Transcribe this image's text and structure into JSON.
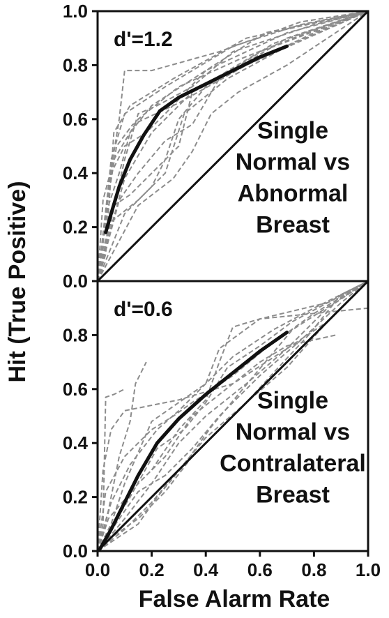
{
  "figure": {
    "ylabel": "Hit (True Positive)",
    "xlabel": "False Alarm Rate"
  },
  "chart_data": [
    {
      "type": "line",
      "panel": "top",
      "dprime": "d'=1.2",
      "annotation": [
        "Single",
        "Normal vs",
        "Abnormal",
        "Breast"
      ],
      "xlim": [
        0,
        1
      ],
      "ylim": [
        0,
        1
      ],
      "x_ticks": [
        "0.0",
        "0.2",
        "0.4",
        "0.6",
        "0.8",
        "1.0"
      ],
      "y_ticks": [
        "0.0",
        "0.2",
        "0.4",
        "0.6",
        "0.8",
        "1.0"
      ],
      "x_ticks_shown": false,
      "colors": {
        "observer": "#8c8c8c",
        "model": "#111111",
        "chance": "#111111"
      },
      "chance_line": [
        [
          0,
          0
        ],
        [
          1,
          1
        ]
      ],
      "model_curve": [
        [
          0.03,
          0.18
        ],
        [
          0.05,
          0.25
        ],
        [
          0.08,
          0.35
        ],
        [
          0.12,
          0.45
        ],
        [
          0.17,
          0.54
        ],
        [
          0.23,
          0.63
        ],
        [
          0.3,
          0.68
        ],
        [
          0.4,
          0.73
        ],
        [
          0.5,
          0.78
        ],
        [
          0.6,
          0.83
        ],
        [
          0.7,
          0.87
        ]
      ],
      "observer_curves": [
        [
          [
            0,
            0
          ],
          [
            0.02,
            0.15
          ],
          [
            0.05,
            0.45
          ],
          [
            0.1,
            0.62
          ],
          [
            0.25,
            0.72
          ],
          [
            0.5,
            0.87
          ],
          [
            0.75,
            0.95
          ],
          [
            1,
            1
          ]
        ],
        [
          [
            0,
            0
          ],
          [
            0.03,
            0.1
          ],
          [
            0.06,
            0.55
          ],
          [
            0.12,
            0.65
          ],
          [
            0.28,
            0.75
          ],
          [
            0.55,
            0.9
          ],
          [
            1,
            1
          ]
        ],
        [
          [
            0,
            0
          ],
          [
            0.04,
            0.28
          ],
          [
            0.08,
            0.4
          ],
          [
            0.12,
            0.55
          ],
          [
            0.2,
            0.65
          ],
          [
            0.4,
            0.78
          ],
          [
            0.7,
            0.92
          ],
          [
            1,
            1
          ]
        ],
        [
          [
            0,
            0
          ],
          [
            0.02,
            0.3
          ],
          [
            0.06,
            0.45
          ],
          [
            0.15,
            0.6
          ],
          [
            0.3,
            0.72
          ],
          [
            0.52,
            0.82
          ],
          [
            0.8,
            0.93
          ],
          [
            1,
            1
          ]
        ],
        [
          [
            0,
            0
          ],
          [
            0.05,
            0.2
          ],
          [
            0.1,
            0.38
          ],
          [
            0.2,
            0.55
          ],
          [
            0.35,
            0.7
          ],
          [
            0.6,
            0.85
          ],
          [
            1,
            1
          ]
        ],
        [
          [
            0,
            0
          ],
          [
            0.04,
            0.35
          ],
          [
            0.08,
            0.6
          ],
          [
            0.1,
            0.78
          ],
          [
            0.2,
            0.78
          ],
          [
            0.45,
            0.85
          ],
          [
            0.75,
            0.96
          ],
          [
            1,
            1
          ]
        ],
        [
          [
            0,
            0
          ],
          [
            0.03,
            0.25
          ],
          [
            0.07,
            0.5
          ],
          [
            0.13,
            0.58
          ],
          [
            0.3,
            0.66
          ],
          [
            0.55,
            0.8
          ],
          [
            0.8,
            0.92
          ],
          [
            1,
            1
          ]
        ],
        [
          [
            0,
            0
          ],
          [
            0.1,
            0.25
          ],
          [
            0.2,
            0.35
          ],
          [
            0.25,
            0.45
          ],
          [
            0.3,
            0.6
          ],
          [
            0.4,
            0.72
          ],
          [
            0.65,
            0.88
          ],
          [
            1,
            1
          ]
        ],
        [
          [
            0,
            0
          ],
          [
            0.08,
            0.3
          ],
          [
            0.15,
            0.4
          ],
          [
            0.25,
            0.52
          ],
          [
            0.35,
            0.58
          ],
          [
            0.45,
            0.75
          ],
          [
            0.7,
            0.9
          ],
          [
            1,
            1
          ]
        ],
        [
          [
            0,
            0
          ],
          [
            0.05,
            0.4
          ],
          [
            0.1,
            0.5
          ],
          [
            0.18,
            0.55
          ],
          [
            0.25,
            0.62
          ],
          [
            0.4,
            0.78
          ],
          [
            0.62,
            0.92
          ],
          [
            1,
            1
          ]
        ],
        [
          [
            0,
            0
          ],
          [
            0.06,
            0.28
          ],
          [
            0.12,
            0.32
          ],
          [
            0.22,
            0.42
          ],
          [
            0.3,
            0.5
          ],
          [
            0.35,
            0.7
          ],
          [
            0.55,
            0.8
          ],
          [
            1,
            1
          ]
        ],
        [
          [
            0,
            0
          ],
          [
            0.02,
            0.12
          ],
          [
            0.05,
            0.22
          ],
          [
            0.15,
            0.3
          ],
          [
            0.25,
            0.4
          ],
          [
            0.32,
            0.62
          ],
          [
            0.48,
            0.75
          ],
          [
            0.72,
            0.88
          ],
          [
            1,
            1
          ]
        ],
        [
          [
            0,
            0
          ],
          [
            0.15,
            0.28
          ],
          [
            0.28,
            0.38
          ],
          [
            0.35,
            0.48
          ],
          [
            0.42,
            0.62
          ],
          [
            0.52,
            0.7
          ],
          [
            0.7,
            0.8
          ],
          [
            1,
            1
          ]
        ],
        [
          [
            0,
            0
          ],
          [
            0.1,
            0.45
          ],
          [
            0.15,
            0.62
          ],
          [
            0.22,
            0.65
          ],
          [
            0.35,
            0.72
          ],
          [
            0.5,
            0.85
          ],
          [
            0.8,
            0.95
          ],
          [
            1,
            1
          ]
        ]
      ]
    },
    {
      "type": "line",
      "panel": "bottom",
      "dprime": "d'=0.6",
      "annotation": [
        "Single",
        "Normal vs",
        "Contralateral",
        "Breast"
      ],
      "xlim": [
        0,
        1
      ],
      "ylim": [
        0,
        1
      ],
      "x_ticks": [
        "0.0",
        "0.2",
        "0.4",
        "0.6",
        "0.8",
        "1.0"
      ],
      "y_ticks": [
        "0.0",
        "0.2",
        "0.4",
        "0.6",
        "0.8",
        "1.0"
      ],
      "x_ticks_shown": true,
      "colors": {
        "observer": "#8c8c8c",
        "model": "#111111",
        "chance": "#111111"
      },
      "chance_line": [
        [
          0,
          0
        ],
        [
          1,
          1
        ]
      ],
      "model_curve": [
        [
          0.01,
          0.01
        ],
        [
          0.05,
          0.08
        ],
        [
          0.1,
          0.18
        ],
        [
          0.15,
          0.28
        ],
        [
          0.22,
          0.4
        ],
        [
          0.3,
          0.49
        ],
        [
          0.4,
          0.58
        ],
        [
          0.5,
          0.66
        ],
        [
          0.6,
          0.74
        ],
        [
          0.7,
          0.81
        ]
      ],
      "observer_curves": [
        [
          [
            0,
            0
          ],
          [
            0.02,
            0.1
          ],
          [
            0.03,
            0.57
          ],
          [
            0.06,
            0.58
          ],
          [
            0.1,
            0.6
          ]
        ],
        [
          [
            0,
            0
          ],
          [
            0.04,
            0.15
          ],
          [
            0.08,
            0.35
          ],
          [
            0.12,
            0.48
          ],
          [
            0.14,
            0.62
          ],
          [
            0.17,
            0.68
          ],
          [
            0.18,
            0.7
          ]
        ],
        [
          [
            0,
            0
          ],
          [
            0.05,
            0.1
          ],
          [
            0.1,
            0.25
          ],
          [
            0.2,
            0.48
          ],
          [
            0.3,
            0.55
          ],
          [
            0.4,
            0.62
          ],
          [
            0.45,
            0.75
          ],
          [
            0.6,
            0.86
          ],
          [
            0.85,
            0.92
          ],
          [
            1,
            1
          ]
        ],
        [
          [
            0,
            0
          ],
          [
            0.04,
            0.12
          ],
          [
            0.15,
            0.25
          ],
          [
            0.25,
            0.35
          ],
          [
            0.35,
            0.5
          ],
          [
            0.5,
            0.62
          ],
          [
            0.6,
            0.7
          ],
          [
            0.7,
            0.76
          ],
          [
            0.88,
            0.8
          ]
        ],
        [
          [
            0,
            0
          ],
          [
            0.1,
            0.12
          ],
          [
            0.2,
            0.25
          ],
          [
            0.3,
            0.4
          ],
          [
            0.4,
            0.5
          ],
          [
            0.55,
            0.62
          ],
          [
            0.7,
            0.75
          ],
          [
            0.85,
            0.9
          ],
          [
            1,
            1
          ]
        ],
        [
          [
            0,
            0
          ],
          [
            0.05,
            0.18
          ],
          [
            0.12,
            0.32
          ],
          [
            0.22,
            0.45
          ],
          [
            0.3,
            0.52
          ],
          [
            0.38,
            0.6
          ],
          [
            0.5,
            0.72
          ],
          [
            0.65,
            0.82
          ],
          [
            0.8,
            0.9
          ],
          [
            1,
            1
          ]
        ],
        [
          [
            0,
            0
          ],
          [
            0.08,
            0.12
          ],
          [
            0.15,
            0.22
          ],
          [
            0.25,
            0.28
          ],
          [
            0.35,
            0.38
          ],
          [
            0.45,
            0.5
          ],
          [
            0.6,
            0.65
          ],
          [
            0.75,
            0.78
          ],
          [
            0.9,
            0.92
          ],
          [
            1,
            1
          ]
        ],
        [
          [
            0,
            0
          ],
          [
            0.1,
            0.08
          ],
          [
            0.2,
            0.18
          ],
          [
            0.3,
            0.3
          ],
          [
            0.4,
            0.42
          ],
          [
            0.55,
            0.55
          ],
          [
            0.7,
            0.68
          ],
          [
            0.85,
            0.85
          ],
          [
            1,
            1
          ]
        ],
        [
          [
            0,
            0
          ],
          [
            0.03,
            0.22
          ],
          [
            0.1,
            0.35
          ],
          [
            0.2,
            0.45
          ],
          [
            0.28,
            0.5
          ],
          [
            0.35,
            0.55
          ],
          [
            0.5,
            0.65
          ],
          [
            0.62,
            0.75
          ],
          [
            0.8,
            0.88
          ],
          [
            1,
            1
          ]
        ],
        [
          [
            0,
            0
          ],
          [
            0.05,
            0.05
          ],
          [
            0.15,
            0.12
          ],
          [
            0.25,
            0.22
          ],
          [
            0.35,
            0.35
          ],
          [
            0.45,
            0.45
          ],
          [
            0.55,
            0.55
          ],
          [
            0.65,
            0.66
          ],
          [
            0.78,
            0.8
          ],
          [
            0.9,
            0.95
          ],
          [
            1,
            1
          ]
        ],
        [
          [
            0,
            0
          ],
          [
            0.12,
            0.2
          ],
          [
            0.22,
            0.38
          ],
          [
            0.32,
            0.45
          ],
          [
            0.4,
            0.55
          ],
          [
            0.48,
            0.68
          ],
          [
            0.6,
            0.76
          ],
          [
            0.72,
            0.85
          ],
          [
            1,
            1
          ]
        ],
        [
          [
            0,
            0
          ],
          [
            0.15,
            0.1
          ],
          [
            0.22,
            0.2
          ],
          [
            0.32,
            0.32
          ],
          [
            0.42,
            0.46
          ],
          [
            0.52,
            0.58
          ],
          [
            0.62,
            0.7
          ],
          [
            0.72,
            0.82
          ],
          [
            1,
            1
          ]
        ],
        [
          [
            0,
            0
          ],
          [
            0.02,
            0.3
          ],
          [
            0.05,
            0.45
          ],
          [
            0.1,
            0.52
          ],
          [
            0.3,
            0.56
          ],
          [
            0.5,
            0.62
          ],
          [
            0.7,
            0.75
          ],
          [
            0.85,
            0.85
          ],
          [
            1,
            1
          ]
        ],
        [
          [
            0.2,
            0.3
          ],
          [
            0.3,
            0.45
          ],
          [
            0.4,
            0.56
          ],
          [
            0.45,
            0.7
          ],
          [
            0.5,
            0.83
          ],
          [
            0.6,
            0.86
          ],
          [
            0.8,
            0.88
          ],
          [
            1,
            0.9
          ]
        ]
      ]
    }
  ]
}
